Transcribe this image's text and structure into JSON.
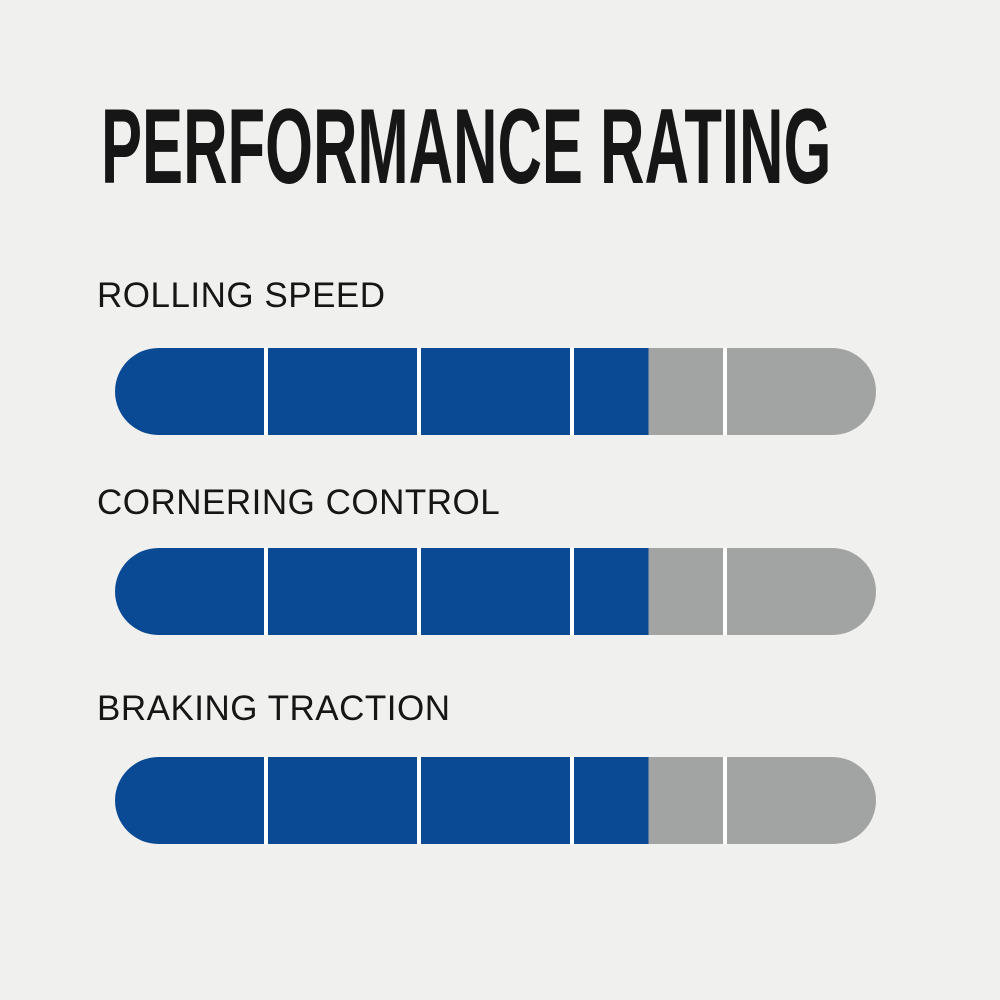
{
  "chart_data": {
    "type": "bar",
    "title": "PERFORMANCE RATING",
    "categories": [
      "ROLLING SPEED",
      "CORNERING CONTROL",
      "BRAKING TRACTION"
    ],
    "values": [
      3.5,
      3.5,
      3.5
    ],
    "max": 5,
    "segments_per_bar": 5,
    "orientation": "horizontal",
    "legend": "none",
    "grid": "off",
    "colors": {
      "filled": "#0a4a94",
      "unfilled": "#a1a4a3",
      "segment_gap": "#ffffff",
      "background": "#f0f0ee",
      "text": "#161616"
    }
  }
}
